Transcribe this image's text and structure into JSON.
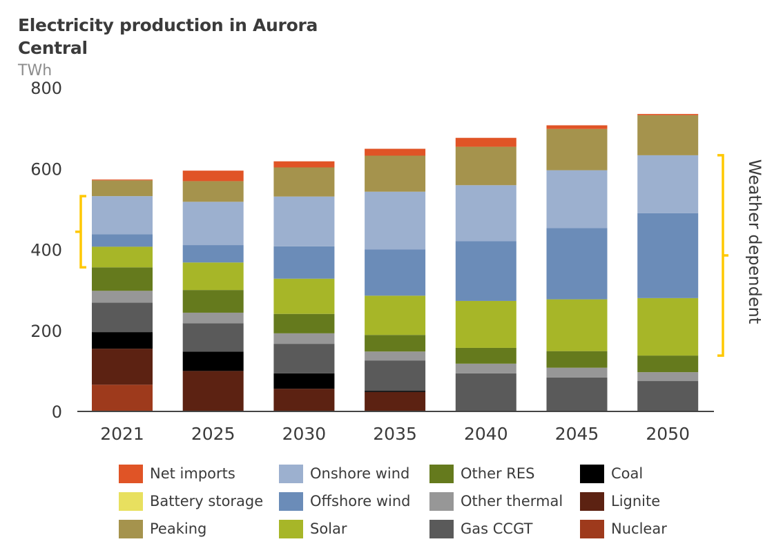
{
  "chart_data": {
    "type": "bar",
    "stacked": true,
    "title": "Electricity production in Aurora Central",
    "ylabel": "TWh",
    "xlabel": "",
    "ylim": [
      0,
      800
    ],
    "yticks": [
      0,
      200,
      400,
      600,
      800
    ],
    "grid": false,
    "legend_position": "bottom",
    "categories": [
      "2021",
      "2025",
      "2030",
      "2035",
      "2040",
      "2045",
      "2050"
    ],
    "series": [
      {
        "name": "Nuclear",
        "color": "#9e3a1c",
        "values": [
          66,
          0,
          0,
          0,
          0,
          0,
          0
        ]
      },
      {
        "name": "Lignite",
        "color": "#5c2212",
        "values": [
          89,
          100,
          56,
          48,
          0,
          0,
          0
        ]
      },
      {
        "name": "Coal",
        "color": "#000000",
        "values": [
          41,
          48,
          38,
          3,
          0,
          0,
          0
        ]
      },
      {
        "name": "Gas CCGT",
        "color": "#5a5a5a",
        "values": [
          73,
          70,
          73,
          75,
          94,
          84,
          75
        ]
      },
      {
        "name": "Other thermal",
        "color": "#979797",
        "values": [
          29,
          26,
          26,
          22,
          24,
          24,
          22
        ]
      },
      {
        "name": "Other RES",
        "color": "#657a1d",
        "values": [
          58,
          56,
          48,
          41,
          39,
          41,
          41
        ]
      },
      {
        "name": "Solar",
        "color": "#a7b628",
        "values": [
          51,
          68,
          87,
          97,
          116,
          128,
          142
        ]
      },
      {
        "name": "Offshore wind",
        "color": "#6b8cb8",
        "values": [
          31,
          43,
          80,
          114,
          148,
          176,
          210
        ]
      },
      {
        "name": "Onshore wind",
        "color": "#9cb0cf",
        "values": [
          94,
          107,
          123,
          143,
          138,
          143,
          143
        ]
      },
      {
        "name": "Battery storage",
        "color": "#e8e05f",
        "values": [
          0,
          0,
          0,
          0,
          0,
          0,
          0
        ]
      },
      {
        "name": "Peaking",
        "color": "#a5934d",
        "values": [
          39,
          51,
          72,
          89,
          95,
          102,
          99
        ]
      },
      {
        "name": "Net imports",
        "color": "#e05426",
        "values": [
          2,
          26,
          15,
          17,
          22,
          9,
          3
        ]
      }
    ],
    "annotations": [
      {
        "text": "Weather dependent",
        "applies_to": "2050",
        "series": [
          "Solar",
          "Offshore wind",
          "Onshore wind"
        ]
      },
      {
        "text": "",
        "applies_to": "2021",
        "series": [
          "Solar",
          "Offshore wind",
          "Onshore wind"
        ]
      }
    ],
    "bracket_color": "#ffc800"
  },
  "header": {
    "title": "Electricity production in Aurora Central",
    "unit": "TWh"
  },
  "annotation_text": "Weather dependent",
  "legend": [
    {
      "label": "Net imports",
      "color": "#e05426"
    },
    {
      "label": "Battery storage",
      "color": "#e8e05f"
    },
    {
      "label": "Peaking",
      "color": "#a5934d"
    },
    {
      "label": "Onshore wind",
      "color": "#9cb0cf"
    },
    {
      "label": "Offshore wind",
      "color": "#6b8cb8"
    },
    {
      "label": "Solar",
      "color": "#a7b628"
    },
    {
      "label": "Other RES",
      "color": "#657a1d"
    },
    {
      "label": "Other thermal",
      "color": "#979797"
    },
    {
      "label": "Gas CCGT",
      "color": "#5a5a5a"
    },
    {
      "label": "Coal",
      "color": "#000000"
    },
    {
      "label": "Lignite",
      "color": "#5c2212"
    },
    {
      "label": "Nuclear",
      "color": "#9e3a1c"
    }
  ]
}
